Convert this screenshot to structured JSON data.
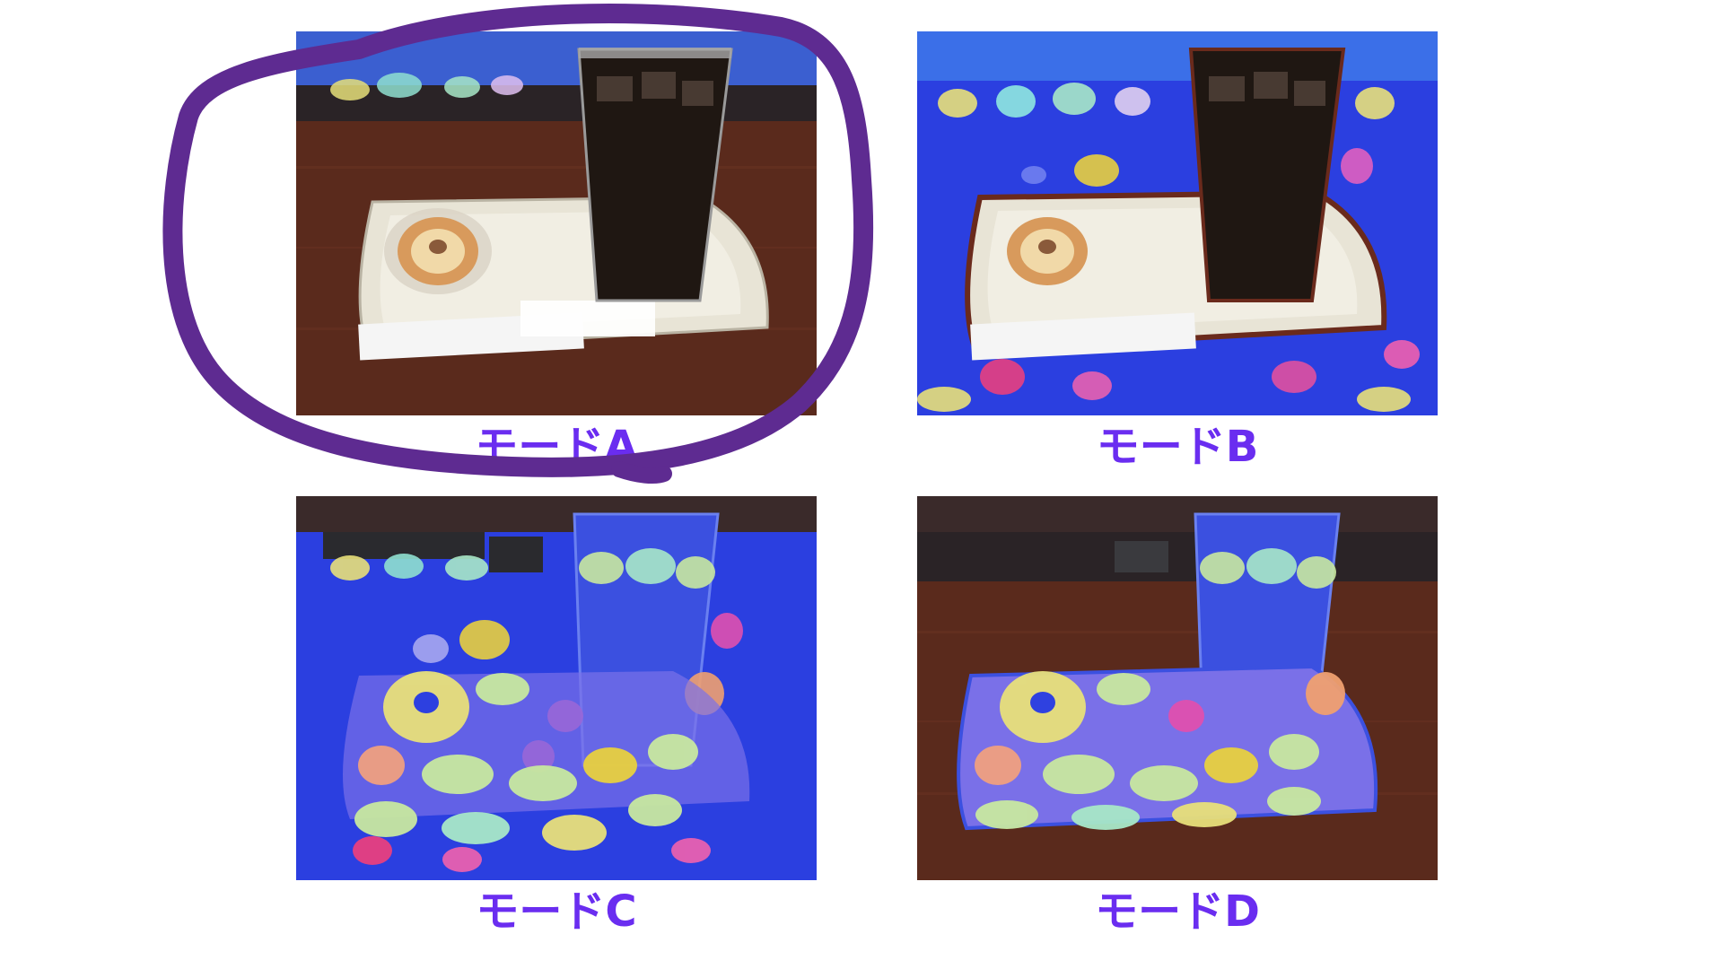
{
  "labels": {
    "a": "モードA",
    "b": "モードB",
    "c": "モードC",
    "d": "モードD"
  },
  "colors": {
    "label": "#6a2df0",
    "circle": "#5e2b91",
    "overlay_blue": "#2b3fe0",
    "table_wood": "#5a2a1c",
    "tray": "#e8e4d6",
    "coffee": "#1f1712"
  },
  "icons": {
    "highlight": "hand-drawn-circle"
  }
}
